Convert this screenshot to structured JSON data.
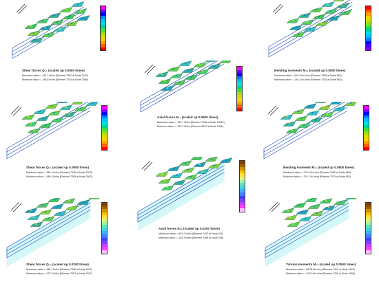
{
  "panels": [
    {
      "id": "p1",
      "title": "Shear forces Q₁₃ (scaled up 0.0500 times)",
      "max": "Maximum value = 133.1 kN/m (Element 7392 at Node 3100)",
      "min": "Minimum value = -168.6 kN/m (Element 7225 at Node 2080)",
      "legend": {
        "colors": [
          "#ff00ff",
          "#8000ff",
          "#0000ff",
          "#0080ff",
          "#00c0ff",
          "#00e0e0",
          "#00d090",
          "#40e040",
          "#90e020",
          "#d0e000",
          "#ffd000",
          "#ffa000",
          "#ff6000",
          "#ff0000"
        ]
      }
    },
    {
      "id": "p2",
      "title": "Bending moments M₂₂ (scaled up 0.0500 times)",
      "max": "Maximum value = 510.5 kN m/m (Element 7358 at Node 682)",
      "min": "Minimum value = -146.4 kN m/m (Element 7025 at Node 862)",
      "legend": {
        "colors": [
          "#ff0000",
          "#ff6000",
          "#ffa000",
          "#ffd000",
          "#d0e000",
          "#90e020",
          "#40e040",
          "#00d090",
          "#00e0e0",
          "#00c0ff",
          "#0080ff",
          "#0000ff",
          "#4000ff",
          "#8000ff"
        ]
      }
    },
    {
      "id": "p3",
      "title": "Axial forces N₁₁ (scaled up 0.0500 times)",
      "max": "Maximum value = 132.7 kN/m (Element 7408 at Node 10012)",
      "min": "Minimum value = -323.7 kN/m (Element 8067 at Node 1365)",
      "legend": {
        "colors": [
          "#ff00ff",
          "#8000ff",
          "#0000ff",
          "#0080ff",
          "#00c0ff",
          "#00e0e0",
          "#00d090",
          "#40e040",
          "#90e020",
          "#d0e000",
          "#ffd000",
          "#ffa000",
          "#ff6000",
          "#ff0000"
        ]
      }
    },
    {
      "id": "p4",
      "title": "Shear forces Q₂₃ (scaled up 0.0500 times)",
      "max": "Maximum value = 385.4 kN/m (Element 7325 at Node 2913)",
      "min": "Minimum value = -486.3 kN/m (Element 7358 at Node 2903)",
      "legend": {
        "colors": [
          "#ff00ff",
          "#8000ff",
          "#0000ff",
          "#0080ff",
          "#00c0ff",
          "#00e0e0",
          "#00d090",
          "#40e040",
          "#90e020",
          "#d0e000",
          "#ffd000",
          "#ffa000",
          "#ff6000",
          "#ff0000"
        ]
      }
    },
    {
      "id": "p5",
      "title": "Bending moments M₁₁ (scaled up 0.0500 times)",
      "max": "Maximum value = 179.5 kN m/m (Element 7395 at Node 655)",
      "min": "Minimum value = -324.2 kN m/m (Element 7015 at Node 853)",
      "legend": {
        "colors": [
          "#ff00ff",
          "#8000ff",
          "#0000ff",
          "#0080ff",
          "#00c0ff",
          "#00e0e0",
          "#00d090",
          "#40e040",
          "#90e020",
          "#d0e000",
          "#ffd000",
          "#ffa000",
          "#ff6000",
          "#ff0000"
        ]
      }
    },
    {
      "id": "p6",
      "title": "Axial forces N₂₂ (scaled up 0.0200 times)",
      "max": "Maximum value = 563.2 kN/m (Element 7423 at Node 615)",
      "min": "Minimum value = -343.3 kN/m (Element 7496 at Node 248)",
      "legend": {
        "colors": [
          "#804000",
          "#a06000",
          "#d09000",
          "#ffc000",
          "#ffe040",
          "#e0f080",
          "#a0f0a0",
          "#60e0c0",
          "#40d0e0",
          "#40b0ff",
          "#4080ff",
          "#4040ff",
          "#8040ff",
          "#c040ff",
          "#ff40ff",
          "#ffc0ff"
        ]
      }
    },
    {
      "id": "p7",
      "title": "Shear forces Q₁₃ (scaled up 0.0200 times)",
      "max": "Maximum value = 495.1 kN/m (Element 7396 at Node 2914)",
      "min": "Minimum value = -473.2 kN/m (Element 7397 at Node 2917)",
      "legend": {
        "colors": [
          "#804000",
          "#a06000",
          "#d09000",
          "#ffc000",
          "#ffe040",
          "#e0f080",
          "#a0f0a0",
          "#60e0c0",
          "#40d0e0",
          "#40b0ff",
          "#4080ff",
          "#4040ff",
          "#8040ff",
          "#c040ff",
          "#ff40ff",
          "#ffc0ff"
        ]
      }
    },
    {
      "id": "p8",
      "title": "Torsion moments M₁₂ (scaled up 0.0500 times)",
      "max": "Maximum value = 58.26 kN m/m (Element 7423 at Node 2541)",
      "min": "Minimum value = -103.3 kN m/m (Element 7305 at Node 2080)",
      "legend": {
        "colors": [
          "#804000",
          "#a06000",
          "#d09000",
          "#ffc000",
          "#ffe040",
          "#e0f080",
          "#a0f0a0",
          "#60e0c0",
          "#40d0e0",
          "#40b0ff",
          "#4080ff",
          "#4040ff",
          "#8040ff",
          "#c040ff",
          "#ff40ff",
          "#ffc0ff"
        ]
      }
    }
  ]
}
